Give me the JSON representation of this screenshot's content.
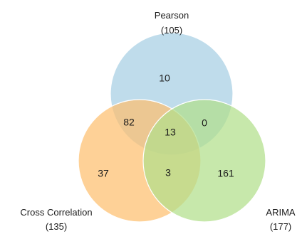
{
  "sets": {
    "pearson": {
      "name": "Pearson",
      "total": "(105)",
      "color": "#a6cee3"
    },
    "cross_correlation": {
      "name": "Cross Correlation",
      "total": "(135)",
      "color": "#fdbf6f"
    },
    "arima": {
      "name": "ARIMA",
      "total": "(177)",
      "color": "#b2df8a"
    }
  },
  "regions": {
    "pearson_only": "10",
    "pearson_cross": "82",
    "all_three": "13",
    "pearson_arima": "0",
    "cross_only": "37",
    "cross_arima": "3",
    "arima_only": "161"
  }
}
